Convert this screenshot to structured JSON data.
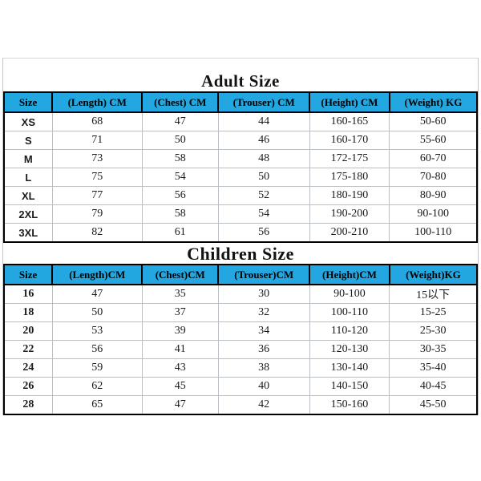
{
  "colors": {
    "header_bg": "#23a7e0",
    "table_border": "#000000",
    "grid_line": "#b9bfc4",
    "page_bg": "#ffffff",
    "text": "#141414"
  },
  "adult": {
    "title": "Adult Size",
    "columns": [
      "Size",
      "(Length) CM",
      "(Chest) CM",
      "(Trouser) CM",
      "(Height) CM",
      "(Weight) KG"
    ],
    "rows": [
      [
        "XS",
        "68",
        "47",
        "44",
        "160-165",
        "50-60"
      ],
      [
        "S",
        "71",
        "50",
        "46",
        "160-170",
        "55-60"
      ],
      [
        "M",
        "73",
        "58",
        "48",
        "172-175",
        "60-70"
      ],
      [
        "L",
        "75",
        "54",
        "50",
        "175-180",
        "70-80"
      ],
      [
        "XL",
        "77",
        "56",
        "52",
        "180-190",
        "80-90"
      ],
      [
        "2XL",
        "79",
        "58",
        "54",
        "190-200",
        "90-100"
      ],
      [
        "3XL",
        "82",
        "61",
        "56",
        "200-210",
        "100-110"
      ]
    ]
  },
  "children": {
    "title": "Children Size",
    "columns": [
      "Size",
      "(Length)CM",
      "(Chest)CM",
      "(Trouser)CM",
      "(Height)CM",
      "(Weight)KG"
    ],
    "rows": [
      [
        "16",
        "47",
        "35",
        "30",
        "90-100",
        "15以下"
      ],
      [
        "18",
        "50",
        "37",
        "32",
        "100-110",
        "15-25"
      ],
      [
        "20",
        "53",
        "39",
        "34",
        "110-120",
        "25-30"
      ],
      [
        "22",
        "56",
        "41",
        "36",
        "120-130",
        "30-35"
      ],
      [
        "24",
        "59",
        "43",
        "38",
        "130-140",
        "35-40"
      ],
      [
        "26",
        "62",
        "45",
        "40",
        "140-150",
        "40-45"
      ],
      [
        "28",
        "65",
        "47",
        "42",
        "150-160",
        "45-50"
      ]
    ]
  }
}
